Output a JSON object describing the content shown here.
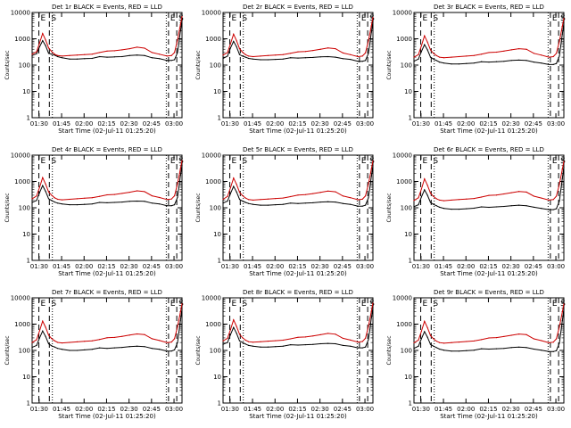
{
  "colors": {
    "events": "#000000",
    "lld": "#cc0000",
    "axes": "#000000",
    "background": "#ffffff"
  },
  "shared": {
    "ylabel": "Counts/sec",
    "xlabel": "Start Time (02-Jul-11 01:25:20)",
    "xticks": [
      "01:30",
      "01:45",
      "02:00",
      "02:15",
      "02:30",
      "02:45",
      "03:00"
    ],
    "yticks": [
      "1",
      "10",
      "100",
      "1000",
      "10000"
    ],
    "xlim_minutes": [
      0,
      100
    ],
    "ylim": [
      1,
      10000
    ],
    "marker_E": "E",
    "marker_S": "S"
  },
  "chart_data": [
    {
      "type": "line",
      "title": "Det 1r BLACK = Events, RED = LLD",
      "x": [
        0,
        3,
        5,
        7,
        9,
        11,
        13,
        15,
        17,
        20,
        25,
        30,
        35,
        40,
        45,
        50,
        55,
        60,
        65,
        70,
        75,
        80,
        85,
        90,
        93,
        95,
        97,
        99,
        100
      ],
      "series": [
        {
          "name": "Events",
          "color": "#000000",
          "values": [
            230,
            270,
            500,
            850,
            550,
            280,
            260,
            240,
            210,
            190,
            170,
            170,
            175,
            180,
            210,
            200,
            205,
            210,
            230,
            240,
            230,
            190,
            175,
            150,
            150,
            160,
            300,
            2000,
            5000
          ]
        },
        {
          "name": "LLD",
          "color": "#cc0000",
          "values": [
            260,
            320,
            700,
            1600,
            900,
            450,
            330,
            260,
            230,
            220,
            230,
            240,
            250,
            260,
            300,
            340,
            350,
            380,
            420,
            480,
            440,
            300,
            260,
            220,
            230,
            300,
            900,
            3500,
            7000
          ]
        }
      ],
      "markers": [
        {
          "x": 4.5,
          "label": "E"
        },
        {
          "x": 11.5,
          "label": "S"
        },
        {
          "x": 91,
          "label": "E"
        },
        {
          "x": 96.5,
          "label": "S"
        }
      ]
    },
    {
      "type": "line",
      "title": "Det 2r BLACK = Events, RED = LLD",
      "x": [
        0,
        3,
        5,
        7,
        9,
        11,
        13,
        15,
        17,
        20,
        25,
        30,
        35,
        40,
        45,
        50,
        55,
        60,
        65,
        70,
        75,
        80,
        85,
        90,
        93,
        95,
        97,
        99,
        100
      ],
      "series": [
        {
          "name": "Events",
          "color": "#000000",
          "values": [
            180,
            220,
            450,
            800,
            500,
            250,
            220,
            200,
            180,
            170,
            160,
            160,
            165,
            170,
            190,
            185,
            190,
            195,
            205,
            210,
            200,
            175,
            165,
            140,
            140,
            150,
            280,
            1800,
            4500
          ]
        },
        {
          "name": "LLD",
          "color": "#cc0000",
          "values": [
            240,
            300,
            650,
            1500,
            850,
            420,
            310,
            250,
            220,
            210,
            220,
            230,
            240,
            250,
            280,
            320,
            330,
            360,
            400,
            450,
            420,
            290,
            250,
            210,
            220,
            290,
            850,
            3200,
            6500
          ]
        }
      ],
      "markers": [
        {
          "x": 4.5,
          "label": "E"
        },
        {
          "x": 11.5,
          "label": "S"
        },
        {
          "x": 91,
          "label": "E"
        },
        {
          "x": 96.5,
          "label": "S"
        }
      ]
    },
    {
      "type": "line",
      "title": "Det 3r BLACK = Events, RED = LLD",
      "x": [
        0,
        3,
        5,
        7,
        9,
        11,
        13,
        15,
        17,
        20,
        25,
        30,
        35,
        40,
        45,
        50,
        55,
        60,
        65,
        70,
        75,
        80,
        85,
        90,
        93,
        95,
        97,
        99,
        100
      ],
      "series": [
        {
          "name": "Events",
          "color": "#000000",
          "values": [
            140,
            170,
            330,
            600,
            380,
            200,
            170,
            150,
            130,
            120,
            110,
            110,
            115,
            120,
            135,
            130,
            135,
            140,
            150,
            155,
            150,
            130,
            120,
            105,
            105,
            115,
            220,
            1500,
            4000
          ]
        },
        {
          "name": "LLD",
          "color": "#cc0000",
          "values": [
            200,
            250,
            550,
            1300,
            750,
            380,
            280,
            230,
            200,
            190,
            200,
            210,
            220,
            230,
            260,
            300,
            310,
            340,
            380,
            420,
            400,
            280,
            240,
            200,
            210,
            280,
            800,
            3000,
            6000
          ]
        }
      ],
      "markers": [
        {
          "x": 4.5,
          "label": "E"
        },
        {
          "x": 11.5,
          "label": "S"
        },
        {
          "x": 91,
          "label": "E"
        },
        {
          "x": 96.5,
          "label": "S"
        }
      ]
    },
    {
      "type": "line",
      "title": "Det 4r BLACK = Events, RED = LLD",
      "x": [
        0,
        3,
        5,
        7,
        9,
        11,
        13,
        15,
        17,
        20,
        25,
        30,
        35,
        40,
        45,
        50,
        55,
        60,
        65,
        70,
        75,
        80,
        85,
        90,
        93,
        95,
        97,
        99,
        100
      ],
      "series": [
        {
          "name": "Events",
          "color": "#000000",
          "values": [
            160,
            190,
            380,
            700,
            420,
            220,
            190,
            165,
            150,
            140,
            130,
            130,
            135,
            140,
            160,
            155,
            160,
            165,
            175,
            180,
            175,
            150,
            140,
            120,
            120,
            130,
            250,
            1700,
            4200
          ]
        },
        {
          "name": "LLD",
          "color": "#cc0000",
          "values": [
            220,
            280,
            600,
            1400,
            800,
            400,
            300,
            240,
            210,
            200,
            210,
            220,
            230,
            240,
            270,
            310,
            320,
            350,
            390,
            440,
            410,
            285,
            245,
            205,
            215,
            285,
            820,
            3100,
            6200
          ]
        }
      ],
      "markers": [
        {
          "x": 4.5,
          "label": "E"
        },
        {
          "x": 11.5,
          "label": "S"
        },
        {
          "x": 91,
          "label": "E"
        },
        {
          "x": 96.5,
          "label": "S"
        }
      ]
    },
    {
      "type": "line",
      "title": "Det 5r BLACK = Events, RED = LLD",
      "x": [
        0,
        3,
        5,
        7,
        9,
        11,
        13,
        15,
        17,
        20,
        25,
        30,
        35,
        40,
        45,
        50,
        55,
        60,
        65,
        70,
        75,
        80,
        85,
        90,
        93,
        95,
        97,
        99,
        100
      ],
      "series": [
        {
          "name": "Events",
          "color": "#000000",
          "values": [
            150,
            180,
            350,
            650,
            400,
            210,
            180,
            160,
            145,
            135,
            125,
            125,
            130,
            135,
            150,
            145,
            150,
            155,
            165,
            170,
            165,
            145,
            135,
            115,
            115,
            125,
            240,
            1600,
            4100
          ]
        },
        {
          "name": "LLD",
          "color": "#cc0000",
          "values": [
            210,
            270,
            580,
            1350,
            780,
            390,
            290,
            235,
            205,
            195,
            205,
            215,
            225,
            235,
            265,
            305,
            315,
            345,
            385,
            430,
            405,
            280,
            242,
            202,
            212,
            282,
            810,
            3050,
            6100
          ]
        }
      ],
      "markers": [
        {
          "x": 4.5,
          "label": "E"
        },
        {
          "x": 11.5,
          "label": "S"
        },
        {
          "x": 91,
          "label": "E"
        },
        {
          "x": 96.5,
          "label": "S"
        }
      ]
    },
    {
      "type": "line",
      "title": "Det 6r BLACK = Events, RED = LLD",
      "x": [
        0,
        3,
        5,
        7,
        9,
        11,
        13,
        15,
        17,
        20,
        25,
        30,
        35,
        40,
        45,
        50,
        55,
        60,
        65,
        70,
        75,
        80,
        85,
        90,
        93,
        95,
        97,
        99,
        100
      ],
      "series": [
        {
          "name": "Events",
          "color": "#000000",
          "values": [
            110,
            130,
            260,
            480,
            300,
            160,
            135,
            120,
            105,
            95,
            88,
            88,
            92,
            96,
            108,
            104,
            108,
            112,
            120,
            125,
            120,
            105,
            95,
            85,
            85,
            92,
            180,
            1300,
            3600
          ]
        },
        {
          "name": "LLD",
          "color": "#cc0000",
          "values": [
            190,
            240,
            520,
            1250,
            720,
            360,
            270,
            220,
            195,
            185,
            195,
            205,
            215,
            225,
            255,
            295,
            305,
            335,
            375,
            415,
            395,
            275,
            235,
            195,
            205,
            275,
            780,
            2900,
            5800
          ]
        }
      ],
      "markers": [
        {
          "x": 4.5,
          "label": "E"
        },
        {
          "x": 11.5,
          "label": "S"
        },
        {
          "x": 91,
          "label": "E"
        },
        {
          "x": 96.5,
          "label": "S"
        }
      ]
    },
    {
      "type": "line",
      "title": "Det 7r BLACK = Events, RED = LLD",
      "x": [
        0,
        3,
        5,
        7,
        9,
        11,
        13,
        15,
        17,
        20,
        25,
        30,
        35,
        40,
        45,
        50,
        55,
        60,
        65,
        70,
        75,
        80,
        85,
        90,
        93,
        95,
        97,
        99,
        100
      ],
      "series": [
        {
          "name": "Events",
          "color": "#000000",
          "values": [
            130,
            155,
            300,
            550,
            340,
            180,
            150,
            135,
            120,
            110,
            100,
            100,
            105,
            110,
            125,
            120,
            125,
            130,
            140,
            145,
            140,
            120,
            110,
            95,
            95,
            105,
            200,
            1400,
            3800
          ]
        },
        {
          "name": "LLD",
          "color": "#cc0000",
          "values": [
            200,
            255,
            560,
            1300,
            760,
            380,
            285,
            232,
            202,
            192,
            202,
            212,
            222,
            232,
            262,
            302,
            312,
            342,
            382,
            425,
            402,
            278,
            238,
            198,
            208,
            278,
            800,
            2950,
            5900
          ]
        }
      ],
      "markers": [
        {
          "x": 4.5,
          "label": "E"
        },
        {
          "x": 11.5,
          "label": "S"
        },
        {
          "x": 91,
          "label": "E"
        },
        {
          "x": 96.5,
          "label": "S"
        }
      ]
    },
    {
      "type": "line",
      "title": "Det 8r BLACK = Events, RED = LLD",
      "x": [
        0,
        3,
        5,
        7,
        9,
        11,
        13,
        15,
        17,
        20,
        25,
        30,
        35,
        40,
        45,
        50,
        55,
        60,
        65,
        70,
        75,
        80,
        85,
        90,
        93,
        95,
        97,
        99,
        100
      ],
      "series": [
        {
          "name": "Events",
          "color": "#000000",
          "values": [
            170,
            200,
            400,
            750,
            450,
            230,
            200,
            175,
            155,
            145,
            135,
            135,
            140,
            145,
            165,
            160,
            165,
            170,
            180,
            185,
            180,
            155,
            145,
            125,
            125,
            135,
            260,
            1750,
            4300
          ]
        },
        {
          "name": "LLD",
          "color": "#cc0000",
          "values": [
            230,
            290,
            620,
            1450,
            820,
            410,
            305,
            245,
            215,
            205,
            215,
            225,
            235,
            245,
            275,
            315,
            325,
            355,
            395,
            445,
            415,
            288,
            248,
            208,
            218,
            288,
            830,
            3150,
            6300
          ]
        }
      ],
      "markers": [
        {
          "x": 4.5,
          "label": "E"
        },
        {
          "x": 11.5,
          "label": "S"
        },
        {
          "x": 91,
          "label": "E"
        },
        {
          "x": 96.5,
          "label": "S"
        }
      ]
    },
    {
      "type": "line",
      "title": "Det 9r BLACK = Events, RED = LLD",
      "x": [
        0,
        3,
        5,
        7,
        9,
        11,
        13,
        15,
        17,
        20,
        25,
        30,
        35,
        40,
        45,
        50,
        55,
        60,
        65,
        70,
        75,
        80,
        85,
        90,
        93,
        95,
        97,
        99,
        100
      ],
      "series": [
        {
          "name": "Events",
          "color": "#000000",
          "values": [
            120,
            145,
            280,
            520,
            320,
            170,
            145,
            128,
            112,
            102,
            94,
            94,
            98,
            102,
            116,
            112,
            116,
            120,
            128,
            133,
            128,
            112,
            102,
            90,
            90,
            98,
            190,
            1350,
            3700
          ]
        },
        {
          "name": "LLD",
          "color": "#cc0000",
          "values": [
            195,
            248,
            540,
            1280,
            740,
            370,
            278,
            226,
            198,
            188,
            198,
            208,
            218,
            228,
            258,
            298,
            308,
            338,
            378,
            420,
            398,
            276,
            236,
            196,
            206,
            276,
            790,
            2920,
            5850
          ]
        }
      ],
      "markers": [
        {
          "x": 4.5,
          "label": "E"
        },
        {
          "x": 11.5,
          "label": "S"
        },
        {
          "x": 91,
          "label": "E"
        },
        {
          "x": 96.5,
          "label": "S"
        }
      ]
    }
  ]
}
